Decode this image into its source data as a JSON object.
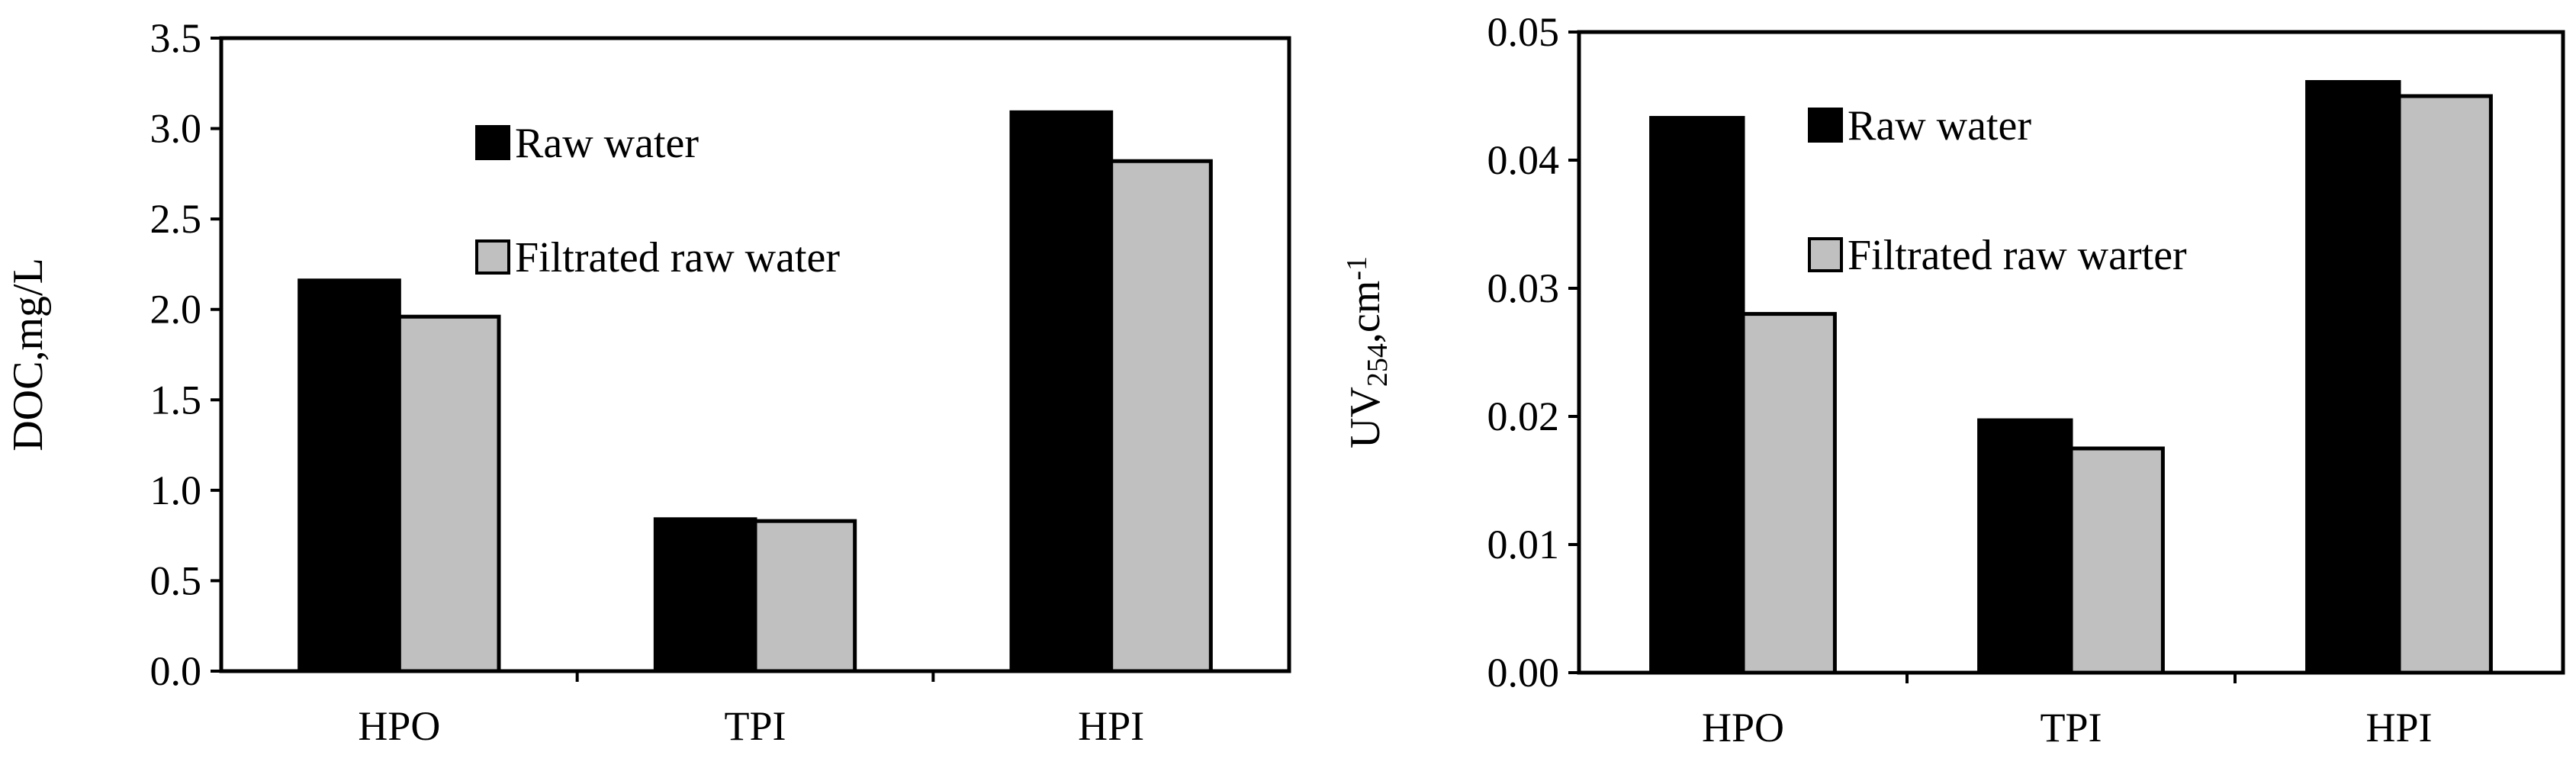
{
  "chart_data": [
    {
      "type": "bar",
      "categories": [
        "HPO",
        "TPI",
        "HPI"
      ],
      "series": [
        {
          "name": "Raw water",
          "values": [
            2.16,
            0.84,
            3.09
          ],
          "color": "#000000"
        },
        {
          "name": "Filtrated raw water",
          "values": [
            1.96,
            0.83,
            2.82
          ],
          "color": "#c0c0c0"
        }
      ],
      "ylabel": "DOC,mg/L",
      "ylim": [
        0,
        3.5
      ],
      "yticks": [
        "0.0",
        "0.5",
        "1.0",
        "1.5",
        "2.0",
        "2.5",
        "3.0",
        "3.5"
      ],
      "grid": false,
      "legend_position": "top-center"
    },
    {
      "type": "bar",
      "categories": [
        "HPO",
        "TPI",
        "HPI"
      ],
      "series": [
        {
          "name": "Raw water",
          "values": [
            0.0433,
            0.0197,
            0.0461
          ],
          "color": "#000000"
        },
        {
          "name": "Filtrated raw warter",
          "values": [
            0.028,
            0.0175,
            0.045
          ],
          "color": "#c0c0c0"
        }
      ],
      "ylabel": {
        "main": "UV",
        "sub": "254",
        "suffix": ",cm",
        "sup": "-1"
      },
      "ylim": [
        0,
        0.05
      ],
      "yticks": [
        "0.00",
        "0.01",
        "0.02",
        "0.03",
        "0.04",
        "0.05"
      ],
      "grid": false,
      "legend_position": "top-center"
    }
  ]
}
